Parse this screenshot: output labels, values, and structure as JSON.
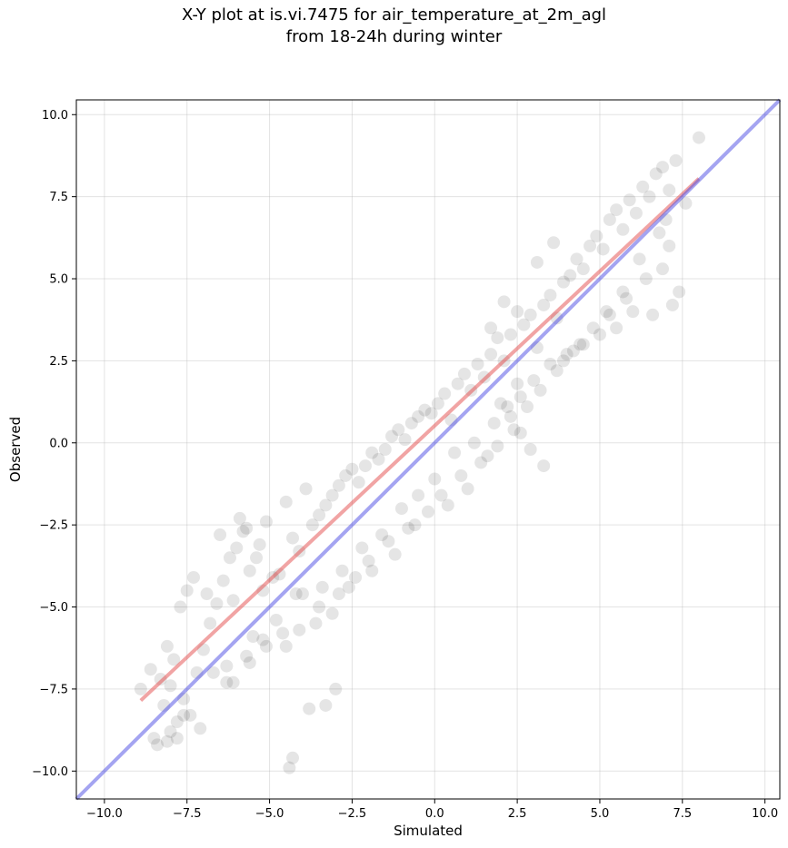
{
  "chart_data": {
    "type": "scatter",
    "title": "X-Y plot at is.vi.7475 for air_temperature_at_2m_agl",
    "subtitle": "from 18-24h during winter",
    "xlabel": "Simulated",
    "ylabel": "Observed",
    "xlim": [
      -10.85,
      10.45
    ],
    "ylim": [
      -10.85,
      10.45
    ],
    "xticks": [
      -10.0,
      -7.5,
      -5.0,
      -2.5,
      0.0,
      2.5,
      5.0,
      7.5,
      10.0
    ],
    "yticks": [
      -10.0,
      -7.5,
      -5.0,
      -2.5,
      0.0,
      2.5,
      5.0,
      7.5,
      10.0
    ],
    "xtick_labels": [
      "−10.0",
      "−7.5",
      "−5.0",
      "−2.5",
      "0.0",
      "2.5",
      "5.0",
      "7.5",
      "10.0"
    ],
    "ytick_labels": [
      "−10.0",
      "−7.5",
      "−5.0",
      "−2.5",
      "0.0",
      "2.5",
      "5.0",
      "7.5",
      "10.0"
    ],
    "grid": true,
    "point_color": "#000000",
    "series": [
      {
        "x": [
          -8.9,
          -8.6,
          -8.3,
          -8.1,
          -7.9,
          -7.7,
          -7.5,
          -7.3,
          -8.0,
          -8.4,
          -7.8,
          -7.6,
          -7.2,
          -7.0,
          -6.8,
          -6.6,
          -6.4,
          -6.2,
          -6.9,
          -7.4,
          -8.2,
          -8.0,
          -7.8,
          -6.5,
          -6.3,
          -6.0,
          -5.8,
          -5.6,
          -5.4,
          -5.2,
          -6.1,
          -5.9,
          -5.7,
          -5.5,
          -5.3,
          -5.1,
          -4.9,
          -4.7,
          -4.5,
          -4.3,
          -4.1,
          -3.9,
          -3.7,
          -3.5,
          -3.3,
          -3.1,
          -2.9,
          -2.7,
          -2.5,
          -2.3,
          -2.1,
          -1.9,
          -1.7,
          -1.5,
          -1.3,
          -1.1,
          -0.9,
          -0.7,
          -0.5,
          -0.3,
          -0.1,
          0.1,
          0.3,
          0.5,
          0.7,
          0.9,
          1.1,
          1.3,
          1.5,
          1.7,
          1.9,
          2.1,
          2.3,
          2.5,
          2.7,
          2.9,
          3.1,
          3.3,
          3.5,
          3.7,
          3.9,
          4.1,
          4.3,
          4.5,
          4.7,
          4.9,
          5.1,
          5.3,
          5.5,
          5.7,
          5.9,
          6.1,
          6.3,
          6.5,
          6.7,
          6.9,
          7.1,
          7.3,
          7.6,
          8.0,
          -4.4,
          -4.3,
          -3.8,
          -3.3,
          -3.0,
          -6.3,
          -5.7,
          -5.2,
          -4.8,
          -4.2,
          -3.6,
          -3.1,
          -2.6,
          -1.9,
          -1.2,
          -0.6,
          0.2,
          0.8,
          1.4,
          1.9,
          2.4,
          2.8,
          3.2,
          3.7,
          4.2,
          4.8,
          5.3,
          5.8,
          6.4,
          6.9,
          7.2,
          7.4,
          7.1,
          6.6,
          6.0,
          5.5,
          5.0,
          4.5,
          4.0,
          3.5,
          3.0,
          2.6,
          2.2,
          1.8,
          1.2,
          0.6,
          0.0,
          -0.5,
          -1.0,
          -1.6,
          -2.2,
          -2.8,
          -3.4,
          -4.0,
          -4.6,
          -5.1,
          -5.6,
          -6.1,
          -6.7,
          -7.1,
          -7.6,
          -8.1,
          -8.5,
          2.0,
          2.3,
          2.6,
          2.9,
          3.3,
          1.6,
          1.0,
          0.4,
          -0.2,
          -0.8,
          -1.4,
          -2.0,
          -2.4,
          -2.9,
          -3.5,
          -4.1,
          -4.5,
          3.9,
          4.4,
          5.2,
          5.7,
          6.2,
          6.8,
          7.0,
          1.7,
          2.1,
          2.5,
          3.1,
          3.6
        ],
        "y": [
          -7.5,
          -6.9,
          -7.2,
          -6.2,
          -6.6,
          -5.0,
          -4.5,
          -4.1,
          -8.8,
          -9.2,
          -8.5,
          -7.8,
          -7.0,
          -6.3,
          -5.5,
          -4.9,
          -4.2,
          -3.5,
          -4.6,
          -8.3,
          -8.0,
          -7.4,
          -9.0,
          -2.8,
          -6.8,
          -3.2,
          -2.7,
          -3.9,
          -3.5,
          -4.5,
          -4.8,
          -2.3,
          -2.6,
          -5.9,
          -3.1,
          -2.4,
          -4.1,
          -4.0,
          -1.8,
          -2.9,
          -3.3,
          -1.4,
          -2.5,
          -2.2,
          -1.9,
          -1.6,
          -1.3,
          -1.0,
          -0.8,
          -1.2,
          -0.7,
          -0.3,
          -0.5,
          -0.2,
          0.2,
          0.4,
          0.1,
          0.6,
          0.8,
          1.0,
          0.9,
          1.2,
          1.5,
          0.7,
          1.8,
          2.1,
          1.6,
          2.4,
          2.0,
          2.7,
          3.2,
          2.5,
          3.3,
          1.8,
          3.6,
          3.9,
          2.9,
          4.2,
          4.5,
          3.8,
          4.9,
          5.1,
          5.6,
          5.3,
          6.0,
          6.3,
          5.9,
          6.8,
          7.1,
          6.5,
          7.4,
          7.0,
          7.8,
          7.5,
          8.2,
          8.4,
          7.7,
          8.6,
          7.3,
          9.3,
          -9.9,
          -9.6,
          -8.1,
          -8.0,
          -7.5,
          -7.3,
          -6.5,
          -6.0,
          -5.4,
          -4.6,
          -5.5,
          -5.2,
          -4.4,
          -3.9,
          -3.4,
          -2.5,
          -1.6,
          -1.0,
          -0.6,
          -0.1,
          0.4,
          1.1,
          1.6,
          2.2,
          2.8,
          3.5,
          3.9,
          4.4,
          5.0,
          5.3,
          4.2,
          4.6,
          6.0,
          3.9,
          4.0,
          3.5,
          3.3,
          3.0,
          2.7,
          2.4,
          1.9,
          1.4,
          1.1,
          0.6,
          0.0,
          -0.3,
          -1.1,
          -1.6,
          -2.0,
          -2.8,
          -3.2,
          -3.9,
          -4.4,
          -4.6,
          -5.8,
          -6.2,
          -6.7,
          -7.3,
          -7.0,
          -8.7,
          -8.3,
          -9.1,
          -9.0,
          1.2,
          0.8,
          0.3,
          -0.2,
          -0.7,
          -0.4,
          -1.4,
          -1.9,
          -2.1,
          -2.6,
          -3.0,
          -3.6,
          -4.1,
          -4.6,
          -5.0,
          -5.7,
          -6.2,
          2.5,
          3.0,
          4.0,
          4.6,
          5.6,
          6.4,
          6.8,
          3.5,
          4.3,
          4.0,
          5.5,
          6.1
        ]
      }
    ],
    "lines": [
      {
        "color": "#e34a4a",
        "x": [
          -8.9,
          8.0
        ],
        "y": [
          -7.85,
          8.05
        ]
      },
      {
        "color": "#4a4ae3",
        "x": [
          -10.85,
          10.45
        ],
        "y": [
          -10.85,
          10.45
        ]
      }
    ]
  }
}
